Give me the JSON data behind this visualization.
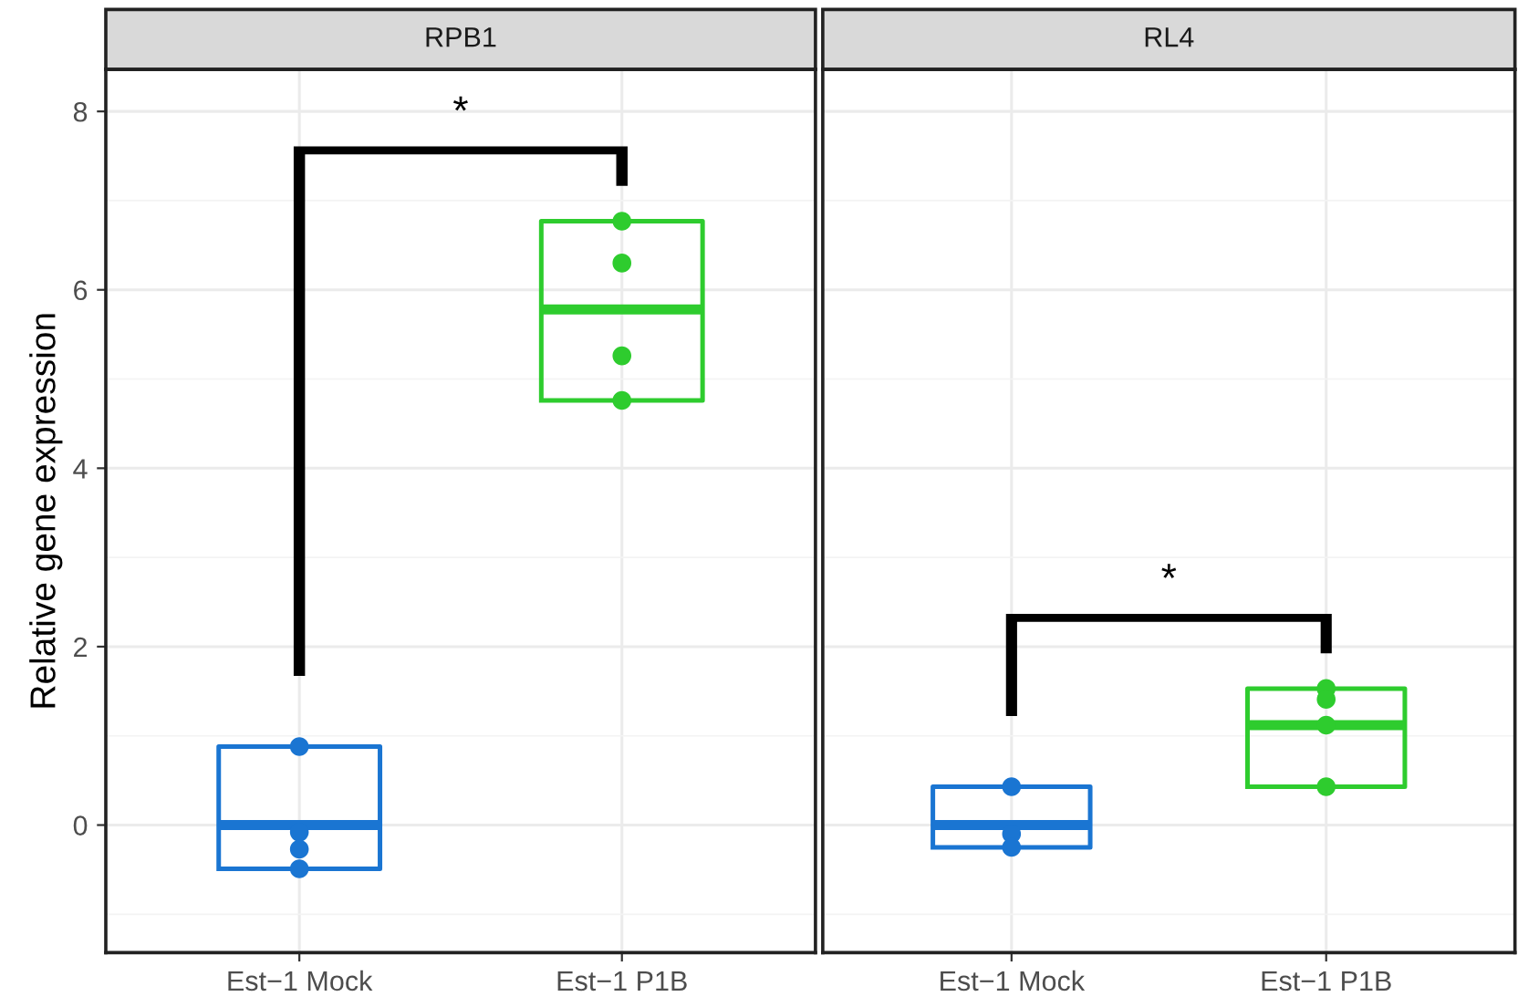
{
  "chart_data": [
    {
      "type": "box",
      "title": "RPB1",
      "ylabel": "Relative gene expression",
      "categories": [
        "Est−1 Mock",
        "Est−1 P1B"
      ],
      "colors": [
        "#1a75d2",
        "#2ecc2e"
      ],
      "boxes": [
        {
          "low": -0.49,
          "q1": -0.49,
          "median": 0.0,
          "q3": 0.88,
          "high": 0.88
        },
        {
          "low": 4.76,
          "q1": 4.76,
          "median": 5.78,
          "q3": 6.77,
          "high": 6.77
        }
      ],
      "series": [
        {
          "type": "scatter",
          "color": "#1a75d2",
          "x": [
            "Est−1 Mock",
            "Est−1 Mock",
            "Est−1 Mock",
            "Est−1 Mock"
          ],
          "values": [
            0.88,
            -0.08,
            -0.27,
            -0.49
          ]
        },
        {
          "type": "scatter",
          "color": "#2ecc2e",
          "x": [
            "Est−1 P1B",
            "Est−1 P1B",
            "Est−1 P1B",
            "Est−1 P1B"
          ],
          "values": [
            6.77,
            6.3,
            5.26,
            4.76
          ]
        }
      ],
      "ylim": [
        -1.43,
        8.47
      ],
      "yticks": [
        0,
        2,
        4,
        6,
        8
      ],
      "grid": true,
      "marker": "circle",
      "annotations": [
        "*"
      ]
    },
    {
      "type": "box",
      "title": "RL4",
      "categories": [
        "Est−1 Mock",
        "Est−1 P1B"
      ],
      "colors": [
        "#1a75d2",
        "#2ecc2e"
      ],
      "boxes": [
        {
          "low": -0.25,
          "q1": -0.25,
          "median": 0.0,
          "q3": 0.43,
          "high": 0.43
        },
        {
          "low": 0.43,
          "q1": 0.43,
          "median": 1.12,
          "q3": 1.53,
          "high": 1.53
        }
      ],
      "series": [
        {
          "type": "scatter",
          "color": "#1a75d2",
          "x": [
            "Est−1 Mock",
            "Est−1 Mock",
            "Est−1 Mock"
          ],
          "values": [
            0.43,
            -0.1,
            -0.25
          ]
        },
        {
          "type": "scatter",
          "color": "#2ecc2e",
          "x": [
            "Est−1 P1B",
            "Est−1 P1B",
            "Est−1 P1B",
            "Est−1 P1B"
          ],
          "values": [
            1.53,
            1.41,
            1.12,
            0.43
          ]
        }
      ],
      "ylim": [
        -1.43,
        8.47
      ],
      "yticks": [
        0,
        2,
        4,
        6,
        8
      ],
      "grid": true,
      "marker": "circle",
      "tick_labels": "x",
      "annotations": [
        "*"
      ]
    }
  ]
}
